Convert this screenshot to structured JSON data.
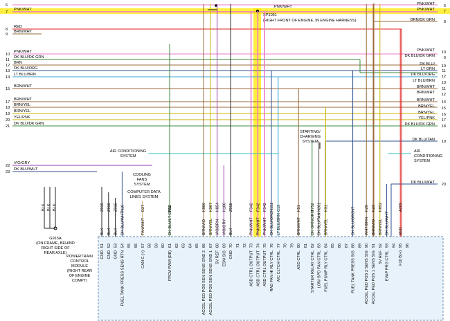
{
  "left_rows": [
    {
      "pin": 6
    },
    {
      "pin": 7,
      "label": "PNK/WHT"
    },
    {
      "pin": 8,
      "label": "RED"
    },
    {
      "pin": 9,
      "label": "BRN/WHT"
    },
    {
      "pin": 10,
      "label": "PNK/WHT"
    },
    {
      "pin": 11,
      "label": "DK BLU/DK GRN"
    },
    {
      "pin": 12,
      "label": "BRN"
    },
    {
      "pin": 13,
      "label": "DK BLU/ORG"
    },
    {
      "pin": 14,
      "label": "LT BLU/BRN"
    },
    {
      "pin": 15,
      "label": "BRN/WHT"
    },
    {
      "pin": 17,
      "label": "BRN/WHT"
    },
    {
      "pin": 18,
      "label": "BRN/YEL"
    },
    {
      "pin": 19,
      "label": "BRN/YEL"
    },
    {
      "pin": 20,
      "label": "YEL/PNK"
    },
    {
      "pin": 21,
      "label": "DK BLU/DK GRN"
    },
    {
      "pin": 22,
      "label": "VIO/GRY"
    },
    {
      "pin": 23,
      "label": "DK BLU/WHT"
    }
  ],
  "right_rows": [
    {
      "label": "PNK/WHT",
      "pin": 6
    },
    {
      "label": "PNK/WHT",
      "pin": 7
    },
    {
      "label": "BRN/DK GRN",
      "pin": 8
    },
    {
      "label": "PNK/WHT",
      "pin": 10
    },
    {
      "label": "DK BLU/DK GRN",
      "pin": 9
    },
    {
      "label": "DK BLU/",
      "pin": 10
    },
    {
      "label": "LT GRN",
      "pin": 11
    },
    {
      "label": "DK BLU/ORG",
      "pin": 12
    },
    {
      "label": "LT BLU/BRN",
      "pin": 13
    },
    {
      "label": "BRN/WHT",
      "pin": 11
    },
    {
      "label": "BRN/WHT",
      "pin": 12
    },
    {
      "label": "BRN/WHT",
      "pin": 14
    },
    {
      "label": "BRN/YEL",
      "pin": 15
    },
    {
      "label": "BRN/YEL",
      "pin": 16
    },
    {
      "label": "YEL/PNK",
      "pin": 17
    },
    {
      "label": "DK BLU/DK GRN",
      "pin": 18
    },
    {
      "label": "DK BLU/TAN",
      "pin": 19
    },
    {
      "label": "DK BLU/WHT",
      "pin": 20
    }
  ],
  "labels": {
    "top_wire": "PNK/WHT",
    "splice": "SP1051",
    "splice_note": "(RIGHT FRONT OF ENGINE, IN ENGINE HARNESS)",
    "starting": [
      "STARTING/",
      "CHARGING",
      "SYSTEM"
    ],
    "ac_left": [
      "AIR CONDITIONING",
      "SYSTEM"
    ],
    "ac_right": [
      "AIR",
      "CONDITIONING",
      "SYSTEM"
    ],
    "cooling": [
      "COOLING",
      "FANS",
      "SYSTEM"
    ],
    "data_lines": [
      "COMPUTER DATA",
      "LINES SYSTEM"
    ],
    "ground_wires": [
      "BLK",
      "BLK",
      "BLK"
    ],
    "ground": [
      "G915A",
      "(ON FRAME, BEHIND",
      "RIGHT SIDE OF",
      "REAR AXLE)"
    ],
    "module": [
      "POWERTRAIN",
      "CONTROL",
      "MODULE",
      "(RIGHT REAR",
      "OF ENGINE",
      "COMPT)"
    ]
  },
  "pins": [
    {
      "pin": 51,
      "wire": "BLK",
      "circuit": "Z915",
      "func": "GND"
    },
    {
      "pin": 52,
      "wire": "BLK",
      "circuit": "Z915",
      "func": "GND"
    },
    {
      "pin": 53,
      "wire": "BLK",
      "circuit": "Z915",
      "func": "GND"
    },
    {
      "pin": 54,
      "wire": "DK BLU/WHT",
      "circuit": "N10",
      "func": "FUEL TANK PRESS SENS RTN"
    },
    {
      "pin": 55
    },
    {
      "pin": 56
    },
    {
      "pin": 57,
      "wire": "TAN/WHT",
      "circuit": "D27",
      "func": "CAN C (+)"
    },
    {
      "pin": 58
    },
    {
      "pin": 59
    },
    {
      "pin": 60
    },
    {
      "pin": 61,
      "wire": "DK BLU/LT GRN",
      "circuit": "N12",
      "func": "FPCM PWM (DB)"
    },
    {
      "pin": 62
    },
    {
      "pin": 63
    },
    {
      "pin": 64
    },
    {
      "pin": 65
    },
    {
      "pin": 66,
      "wire": "BRN/VIO",
      "circuit": "K900",
      "func": "ACCEL PED POS SEN SENS GND 2"
    },
    {
      "pin": 67,
      "wire": "BRN/YEL",
      "circuit": "K967",
      "func": "ACCEL PED POS SEN SENS GND 1"
    },
    {
      "pin": 68,
      "wire": "VIO/BRN",
      "circuit": "K854",
      "func": "5V REF"
    },
    {
      "pin": 69,
      "wire": "VIO/GRY",
      "circuit": "K106",
      "func": "ESM SIG"
    },
    {
      "pin": 70,
      "wire": "BLK",
      "circuit": "Z915",
      "func": "GND"
    },
    {
      "pin": 71
    },
    {
      "pin": 72
    },
    {
      "pin": 73,
      "wire": "PNK/WHT",
      "circuit": "F342",
      "func": "ASD CTRL OUTPUT"
    },
    {
      "pin": 74,
      "wire": "PNK/WHT",
      "circuit": "F342",
      "func": "ASD CTRL OUTPUT"
    },
    {
      "pin": 75,
      "wire": "PNK/WHT",
      "circuit": "F342",
      "func": "ASD CTRL OUTPUT"
    },
    {
      "pin": 76,
      "wire": "DK BLU/ORG",
      "circuit": "N152",
      "func": "RAD FAN HI RLY CTRL"
    },
    {
      "pin": 77,
      "wire": "LT BLU/BRN",
      "circuit": "C13",
      "func": "A/C CLTCH CTRL"
    },
    {
      "pin": 78
    },
    {
      "pin": 79
    },
    {
      "pin": 80,
      "wire": "BRN/WHT",
      "circuit": "K51",
      "func": "ASD CTRL"
    },
    {
      "pin": 81
    },
    {
      "pin": 82,
      "wire": "DK GRN/ORG",
      "circuit": "T752",
      "func": "STARTER RELAY CTRL"
    },
    {
      "pin": 83,
      "wire": "DK BLU/TAN",
      "circuit": "N261",
      "func": "LOW SPD FAN CTRL"
    },
    {
      "pin": 84,
      "wire": "BRN/YEL",
      "circuit": "K31",
      "func": "FUEL PUMP RLY CTRL"
    },
    {
      "pin": 85
    },
    {
      "pin": 86
    },
    {
      "pin": 87
    },
    {
      "pin": 88,
      "wire": "DK BLU/ORG",
      "circuit": "N7",
      "func": "FUEL TANK PRESS SIG"
    },
    {
      "pin": 89
    },
    {
      "pin": 90,
      "wire": "WHT/BRN",
      "circuit": "K29",
      "func": "ACCEL PED POS 2 SENS SIG"
    },
    {
      "pin": 91,
      "wire": "BRN/VIO",
      "circuit": "K23",
      "func": "ACCEL PED POS 1 SENS SIG"
    },
    {
      "pin": 92,
      "wire": "BRN/YEL",
      "circuit": "K852",
      "func": "5V REF"
    },
    {
      "pin": 93,
      "wire": "DK BLU/WHT",
      "func": "EVAP PRG CTRL"
    },
    {
      "pin": 94
    },
    {
      "pin": 95,
      "wire": "RED",
      "circuit": "A209",
      "func": "F10 B(+)"
    },
    {
      "pin": 96
    }
  ]
}
